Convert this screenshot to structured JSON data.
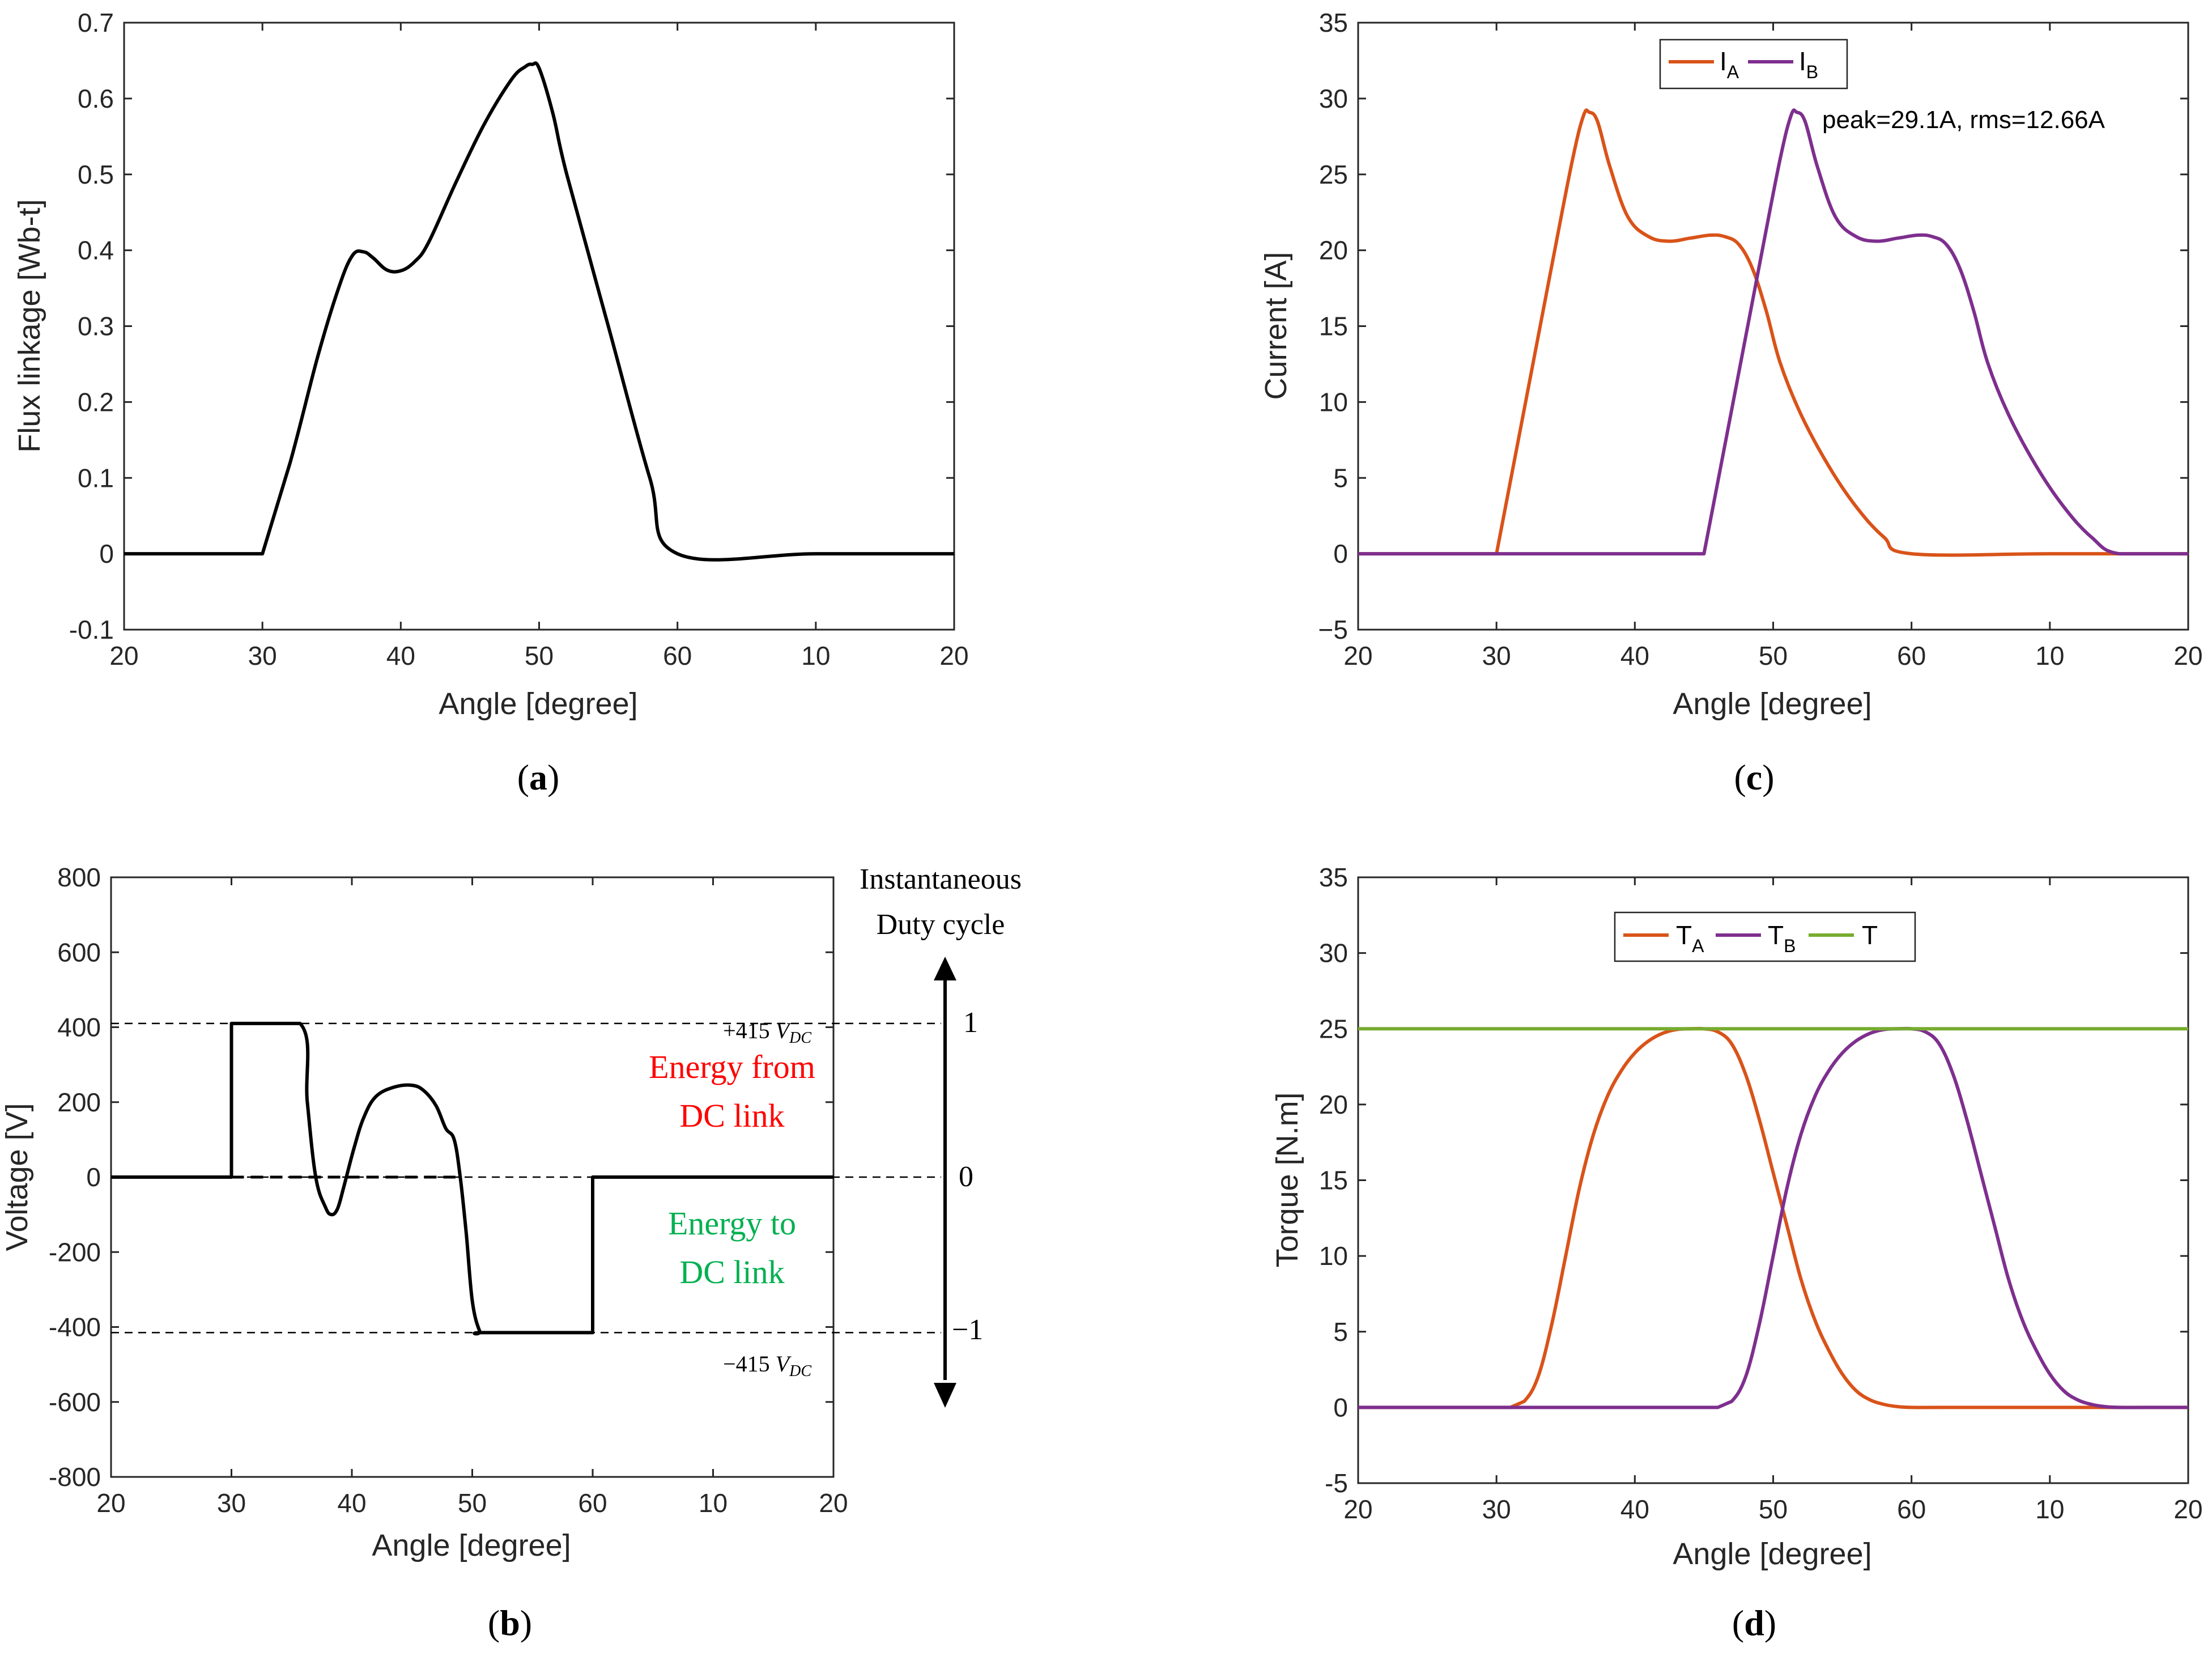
{
  "panels": {
    "a": {
      "caption_letter": "a",
      "open": "(",
      "close": ")"
    },
    "b": {
      "caption_letter": "b",
      "open": "(",
      "close": ")"
    },
    "c": {
      "caption_letter": "c",
      "open": "(",
      "close": ")"
    },
    "d": {
      "caption_letter": "d",
      "open": "(",
      "close": ")"
    }
  },
  "colors": {
    "phase_a": "#d95319",
    "phase_b": "#7e2f8e",
    "total": "#77ac30",
    "line": "#000000",
    "energy_from": "#ff0000",
    "energy_to": "#00b050"
  },
  "chart_data": [
    {
      "id": "a",
      "type": "line",
      "xlabel": "Angle [degree]",
      "ylabel": "Flux linkage [Wb-t]",
      "x_tick_labels": [
        "20",
        "30",
        "40",
        "50",
        "60",
        "10",
        "20"
      ],
      "y_tick_labels": [
        "-0.1",
        "0",
        "0.1",
        "0.2",
        "0.3",
        "0.4",
        "0.5",
        "0.6",
        "0.7"
      ],
      "xlim": [
        20,
        80
      ],
      "ylim": [
        -0.1,
        0.7
      ],
      "series": [
        {
          "name": "Flux linkage",
          "x": [
            20,
            30,
            32,
            34,
            35.5,
            36.5,
            37.3,
            38,
            39,
            40,
            41,
            42,
            44,
            46,
            48,
            49,
            49.5,
            50,
            51,
            52,
            55,
            58,
            60,
            70,
            80
          ],
          "y": [
            0,
            0,
            0.12,
            0.26,
            0.35,
            0.393,
            0.398,
            0.39,
            0.374,
            0.373,
            0.385,
            0.41,
            0.49,
            0.565,
            0.625,
            0.642,
            0.645,
            0.64,
            0.58,
            0.5,
            0.3,
            0.1,
            0,
            0,
            0
          ]
        }
      ]
    },
    {
      "id": "b",
      "type": "line",
      "xlabel": "Angle [degree]",
      "ylabel": "Voltage [V]",
      "x_tick_labels": [
        "20",
        "30",
        "40",
        "50",
        "60",
        "10",
        "20"
      ],
      "y_tick_labels": [
        "-800",
        "-600",
        "-400",
        "-200",
        "0",
        "200",
        "400",
        "600",
        "800"
      ],
      "xlim": [
        20,
        80
      ],
      "ylim": [
        -800,
        800
      ],
      "series": [
        {
          "name": "Voltage",
          "x": [
            20,
            30,
            30,
            35.7,
            36.3,
            37,
            37.8,
            38.3,
            38.8,
            39.3,
            40.2,
            41,
            42,
            43.5,
            45,
            46,
            47,
            47.8,
            48.5,
            49,
            49.5,
            50,
            50.6,
            51,
            60,
            60,
            80
          ],
          "y": [
            0,
            0,
            410,
            410,
            200,
            0,
            -80,
            -100,
            -85,
            -30,
            80,
            160,
            215,
            240,
            245,
            230,
            190,
            130,
            100,
            0,
            -150,
            -330,
            -410,
            -415,
            -415,
            0,
            0
          ]
        }
      ],
      "reference_lines": [
        {
          "label_prefix": "+415 ",
          "label_var": "V",
          "label_sub": "DC",
          "y": 410,
          "duty": "1"
        },
        {
          "label_prefix": "",
          "label_var": "",
          "label_sub": "",
          "y": 0,
          "duty": "0"
        },
        {
          "label_prefix": "−415 ",
          "label_var": "V",
          "label_sub": "DC",
          "y": -415,
          "duty": "−1"
        }
      ],
      "duty_title_line1": "Instantaneous",
      "duty_title_line2": "Duty cycle",
      "energy_from_line1": "Energy from",
      "energy_from_line2": "DC link",
      "energy_to_line1": "Energy to",
      "energy_to_line2": "DC link"
    },
    {
      "id": "c",
      "type": "line",
      "xlabel": "Angle [degree]",
      "ylabel": "Current [A]",
      "x_tick_labels": [
        "20",
        "30",
        "40",
        "50",
        "60",
        "10",
        "20"
      ],
      "y_tick_labels": [
        "−5",
        "0",
        "5",
        "10",
        "15",
        "20",
        "25",
        "30",
        "35"
      ],
      "xlim": [
        20,
        80
      ],
      "ylim": [
        -5,
        35
      ],
      "annotation": "peak=29.1A, rms=12.66A",
      "legend": [
        {
          "main": "I",
          "sub": "A"
        },
        {
          "main": "I",
          "sub": "B"
        }
      ],
      "series": [
        {
          "name": "I_A",
          "x": [
            20,
            30,
            32,
            34,
            35.5,
            36.3,
            36.7,
            37.3,
            38.2,
            39.5,
            41,
            42.5,
            44,
            45.5,
            46.5,
            47.5,
            48.5,
            49.5,
            50.5,
            52,
            54,
            56,
            58,
            60,
            70,
            80
          ],
          "y": [
            0,
            0,
            9.5,
            19,
            26,
            28.9,
            29.1,
            28.5,
            25.5,
            22.2,
            20.9,
            20.6,
            20.8,
            21,
            20.9,
            20.4,
            18.8,
            16,
            12.6,
            9.2,
            5.8,
            3.1,
            1.1,
            0,
            0,
            0
          ]
        },
        {
          "name": "I_B",
          "x": [
            20,
            45,
            47,
            49,
            50.5,
            51.3,
            51.7,
            52.3,
            53.2,
            54.5,
            56,
            57.5,
            59,
            60.5,
            61.5,
            62.5,
            63.5,
            64.5,
            65.5,
            67,
            69,
            71,
            73,
            75,
            80
          ],
          "y": [
            0,
            0,
            9.5,
            19,
            26,
            28.9,
            29.1,
            28.5,
            25.5,
            22.2,
            20.9,
            20.6,
            20.8,
            21,
            20.9,
            20.4,
            18.8,
            16,
            12.6,
            9.2,
            5.8,
            3.1,
            1.1,
            0,
            0
          ]
        }
      ]
    },
    {
      "id": "d",
      "type": "line",
      "xlabel": "Angle [degree]",
      "ylabel": "Torque [N.m]",
      "x_tick_labels": [
        "20",
        "30",
        "40",
        "50",
        "60",
        "10",
        "20"
      ],
      "y_tick_labels": [
        "-5",
        "0",
        "5",
        "10",
        "15",
        "20",
        "25",
        "30",
        "35"
      ],
      "xlim": [
        20,
        80
      ],
      "ylim": [
        -5,
        35
      ],
      "legend": [
        {
          "main": "T",
          "sub": "A"
        },
        {
          "main": "T",
          "sub": "B"
        },
        {
          "main": "T",
          "sub": ""
        }
      ],
      "series": [
        {
          "name": "T_A",
          "x": [
            20,
            31,
            32,
            33,
            34,
            35,
            36,
            37,
            38,
            39,
            40,
            41,
            42,
            43,
            44,
            45,
            46,
            47,
            48,
            49,
            50,
            51,
            52,
            53,
            54,
            55,
            56,
            57,
            58,
            59,
            60,
            62,
            70,
            80
          ],
          "y": [
            0,
            0,
            0.4,
            2,
            5.5,
            10,
            14.5,
            18,
            20.5,
            22.2,
            23.4,
            24.2,
            24.7,
            24.95,
            25,
            25,
            24.8,
            24,
            22,
            19,
            15.5,
            12,
            8.5,
            5.8,
            3.8,
            2.2,
            1.1,
            0.5,
            0.2,
            0.05,
            0,
            0,
            0,
            0
          ]
        },
        {
          "name": "T_B",
          "x": [
            20,
            46,
            47,
            48,
            49,
            50,
            51,
            52,
            53,
            54,
            55,
            56,
            57,
            58,
            59,
            60,
            61,
            62,
            63,
            64,
            65,
            66,
            67,
            68,
            69,
            70,
            71,
            72,
            73,
            74,
            75,
            77,
            80
          ],
          "y": [
            0,
            0,
            0.4,
            2,
            5.5,
            10,
            14.5,
            18,
            20.5,
            22.2,
            23.4,
            24.2,
            24.7,
            24.95,
            25,
            25,
            24.8,
            24,
            22,
            19,
            15.5,
            12,
            8.5,
            5.8,
            3.8,
            2.2,
            1.1,
            0.5,
            0.2,
            0.05,
            0,
            0,
            0
          ]
        },
        {
          "name": "T",
          "x": [
            20,
            80
          ],
          "y": [
            25,
            25
          ]
        }
      ]
    }
  ]
}
